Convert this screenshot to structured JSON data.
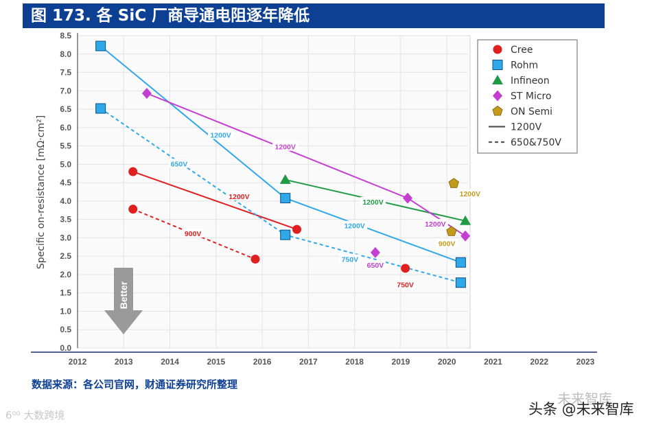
{
  "header": {
    "title": "图 173.  各 SiC 厂商导通电阻逐年降低",
    "color": "#0d3f93"
  },
  "footer": {
    "source": "数据来源：各公司官网，财通证券研究所整理"
  },
  "watermarks": {
    "left": "6⁰⁰ 大数跨境",
    "faint": "未来智库",
    "right": "头条 @未来智库"
  },
  "chart_data": {
    "type": "line",
    "title": "",
    "xlabel": "",
    "ylabel": "Specific on-resistance [mΩ·cm²]",
    "xlim": [
      2012,
      2023
    ],
    "ylim": [
      0,
      8.5
    ],
    "x_ticks": [
      "2012",
      "2013",
      "2014",
      "2015",
      "2016",
      "2017",
      "2018",
      "2019",
      "2020",
      "2021",
      "2022",
      "2023"
    ],
    "y_ticks": [
      "0.0",
      "0.5",
      "1.0",
      "1.5",
      "2.0",
      "2.5",
      "3.0",
      "3.5",
      "4.0",
      "4.5",
      "5.0",
      "5.5",
      "6.0",
      "6.5",
      "7.0",
      "7.5",
      "8.0",
      "8.5"
    ],
    "grid": true,
    "better_label": "Better",
    "legend": [
      {
        "name": "Cree",
        "marker": "circle",
        "color": "#e01f1f"
      },
      {
        "name": "Rohm",
        "marker": "square",
        "color": "#2fa8e8"
      },
      {
        "name": "Infineon",
        "marker": "triangle",
        "color": "#1f9a45"
      },
      {
        "name": "ST Micro",
        "marker": "diamond",
        "color": "#c43ed1"
      },
      {
        "name": "ON Semi",
        "marker": "pentagon",
        "color": "#c49a1c"
      },
      {
        "name": "1200V",
        "line": "solid",
        "color": "#555555"
      },
      {
        "name": "650&750V",
        "line": "dashed",
        "color": "#555555"
      }
    ],
    "legend_position": "top-right",
    "series": [
      {
        "name": "Cree 1200V",
        "company": "Cree",
        "style": "solid",
        "color": "#e01f1f",
        "marker": "circle",
        "points": [
          [
            2013.2,
            4.8
          ],
          [
            2016.75,
            3.23
          ]
        ],
        "label": "1200V",
        "label_at": [
          2015.5,
          4.13
        ],
        "label_color": "#e01f1f"
      },
      {
        "name": "Cree 900V",
        "company": "Cree",
        "style": "dashed",
        "color": "#e01f1f",
        "marker": "circle",
        "points": [
          [
            2013.2,
            3.78
          ],
          [
            2015.85,
            2.42
          ]
        ],
        "label": "900V",
        "label_at": [
          2014.5,
          3.12
        ],
        "label_color": "#e01f1f"
      },
      {
        "name": "Cree 750V",
        "company": "Cree",
        "style": "none",
        "color": "#e01f1f",
        "marker": "circle",
        "points": [
          [
            2019.1,
            2.17
          ]
        ],
        "label": "750V",
        "label_at": [
          2019.1,
          1.73
        ],
        "label_color": "#e01f1f"
      },
      {
        "name": "Rohm 1200V",
        "company": "Rohm",
        "style": "solid",
        "color": "#2fa8e8",
        "marker": "square",
        "points": [
          [
            2012.5,
            8.22
          ],
          [
            2016.5,
            4.08
          ],
          [
            2020.3,
            2.33
          ]
        ],
        "label": "1200V",
        "label_at": [
          2015.1,
          5.8
        ],
        "label_color": "#2fa8e8",
        "extra_labels": [
          {
            "text": "1200V",
            "at": [
              2018,
              3.33
            ]
          }
        ]
      },
      {
        "name": "Rohm 650V/750V",
        "company": "Rohm",
        "style": "dashed",
        "color": "#2fa8e8",
        "marker": "square",
        "points": [
          [
            2012.5,
            6.52
          ],
          [
            2016.5,
            3.08
          ],
          [
            2020.3,
            1.78
          ]
        ],
        "label": "650V",
        "label_at": [
          2014.2,
          5.02
        ],
        "label_color": "#2fa8e8",
        "extra_labels": [
          {
            "text": "750V",
            "at": [
              2017.9,
              2.42
            ]
          }
        ]
      },
      {
        "name": "Infineon 1200V",
        "company": "Infineon",
        "style": "solid",
        "color": "#1f9a45",
        "marker": "triangle",
        "points": [
          [
            2016.5,
            4.58
          ],
          [
            2020.4,
            3.46
          ]
        ],
        "label": "1200V",
        "label_at": [
          2018.4,
          3.98
        ],
        "label_color": "#1f9a45"
      },
      {
        "name": "ST Micro 1200V",
        "company": "ST Micro",
        "style": "solid",
        "color": "#c43ed1",
        "marker": "diamond",
        "points": [
          [
            2013.5,
            6.93
          ],
          [
            2019.15,
            4.08
          ],
          [
            2020.4,
            3.05
          ]
        ],
        "label": "1200V",
        "label_at": [
          2016.5,
          5.48
        ],
        "label_color": "#c43ed1",
        "extra_labels": [
          {
            "text": "1200V",
            "at": [
              2019.75,
              3.38
            ]
          }
        ]
      },
      {
        "name": "ST Micro 650V",
        "company": "ST Micro",
        "style": "none",
        "color": "#c43ed1",
        "marker": "diamond",
        "points": [
          [
            2018.45,
            2.6
          ]
        ],
        "label": "650V",
        "label_at": [
          2018.45,
          2.26
        ],
        "label_color": "#c43ed1"
      },
      {
        "name": "ON Semi 1200V",
        "company": "ON Semi",
        "style": "none",
        "color": "#c49a1c",
        "marker": "pentagon",
        "points": [
          [
            2020.15,
            4.48
          ]
        ],
        "label": "1200V",
        "label_at": [
          2020.5,
          4.2
        ],
        "label_color": "#c49a1c"
      },
      {
        "name": "ON Semi 900V",
        "company": "ON Semi",
        "style": "none",
        "color": "#c49a1c",
        "marker": "pentagon",
        "points": [
          [
            2020.1,
            3.17
          ]
        ],
        "label": "900V",
        "label_at": [
          2020.0,
          2.85
        ],
        "label_color": "#c49a1c"
      }
    ]
  }
}
